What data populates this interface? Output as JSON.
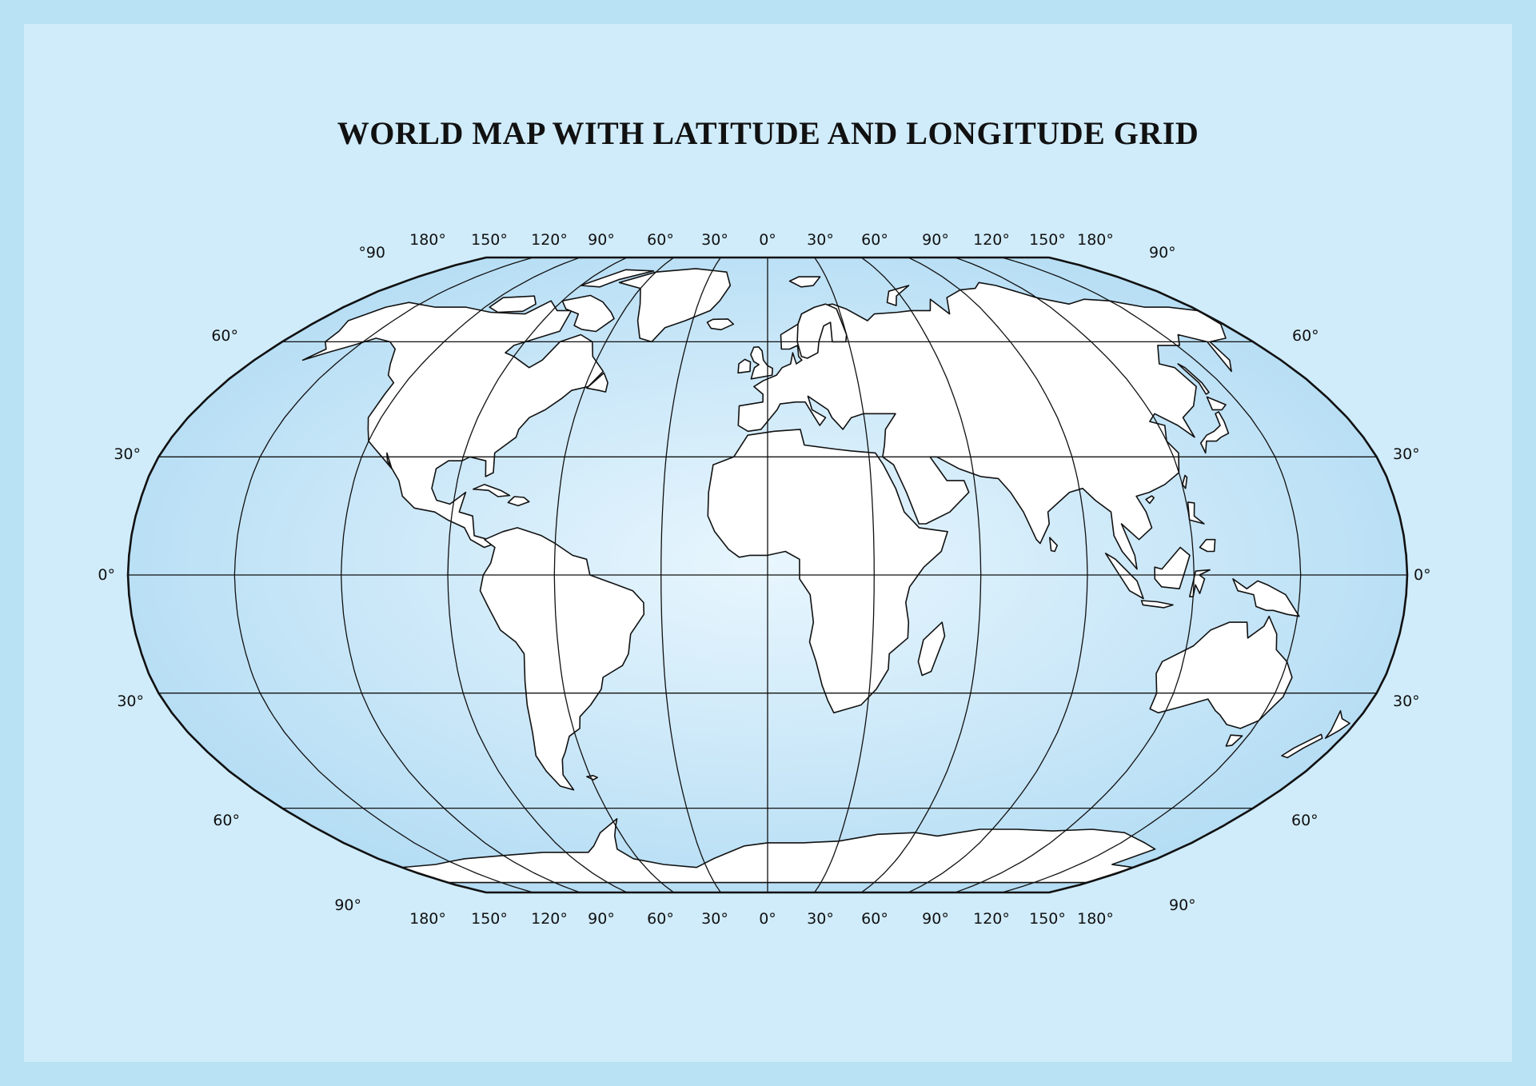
{
  "title": "WORLD MAP WITH LATITUDE AND LONGITUDE GRID",
  "colors": {
    "outer_border": "#b9e2f5",
    "background": "#d0ecfb",
    "ocean_center": "#e8f6fe",
    "ocean_edge": "#b5ddf4",
    "land": "#ffffff",
    "grid": "#111111"
  },
  "longitude_labels": {
    "top": [
      "180°",
      "150°",
      "120°",
      "90°",
      "60°",
      "30°",
      "0°",
      "30°",
      "60°",
      "90°",
      "120°",
      "150°",
      "180°"
    ],
    "bottom": [
      "180°",
      "150°",
      "120°",
      "90°",
      "60°",
      "30°",
      "0°",
      "30°",
      "60°",
      "90°",
      "120°",
      "150°",
      "180°"
    ]
  },
  "latitude_labels": {
    "left": [
      "°90",
      "60°",
      "30°",
      "0°",
      "30°",
      "60°",
      "90°"
    ],
    "right": [
      "90°",
      "60°",
      "30°",
      "0°",
      "30°",
      "60°",
      "90°"
    ]
  },
  "latitudes_deg": [
    60,
    30,
    0,
    -30,
    -60
  ],
  "longitudes_deg": [
    -180,
    -150,
    -120,
    -90,
    -60,
    -30,
    0,
    30,
    60,
    90,
    120,
    150,
    180
  ]
}
